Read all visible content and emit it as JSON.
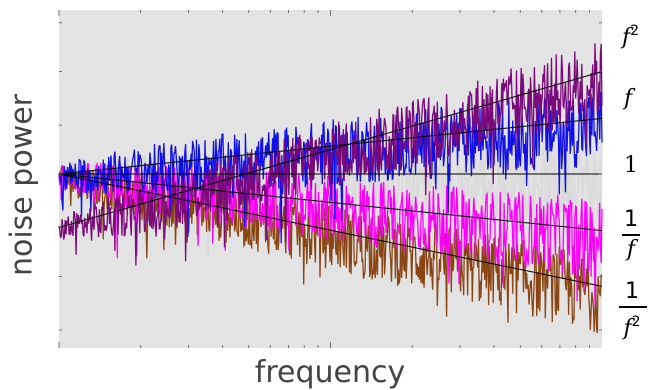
{
  "chart_data": {
    "type": "line",
    "title": "",
    "xlabel": "frequency",
    "ylabel": "noise power",
    "x_scale": "log",
    "y_scale": "log",
    "grid": false,
    "legend": "none",
    "background_color": "#e3e3e3",
    "series": [
      {
        "name": "f²",
        "slope": 2,
        "color": "#7b0a7b",
        "trend_values": [
          [
            0.01,
            0.3
          ],
          [
            1,
            10
          ]
        ],
        "label_parts": {
          "base": "f",
          "exp": "2"
        }
      },
      {
        "name": "f",
        "slope": 1,
        "color": "#1010e8",
        "trend_values": [
          [
            0.01,
            1
          ],
          [
            1,
            3.5
          ]
        ],
        "label_parts": {
          "base": "f",
          "exp": ""
        }
      },
      {
        "name": "1",
        "slope": 0,
        "color": "#dadada",
        "trend_values": [
          [
            0.01,
            1
          ],
          [
            1,
            1
          ]
        ],
        "label_parts": {
          "base": "1",
          "exp": ""
        }
      },
      {
        "name": "1/f",
        "slope": -1,
        "color": "#ff00ff",
        "trend_values": [
          [
            0.01,
            1
          ],
          [
            1,
            0.28
          ]
        ],
        "label_parts": {
          "num": "1",
          "den": "f",
          "exp": ""
        }
      },
      {
        "name": "1/f²",
        "slope": -2,
        "color": "#8b4513",
        "trend_values": [
          [
            0.01,
            1
          ],
          [
            1,
            0.08
          ]
        ],
        "label_parts": {
          "num": "1",
          "den": "f",
          "exp": "2"
        }
      }
    ]
  }
}
